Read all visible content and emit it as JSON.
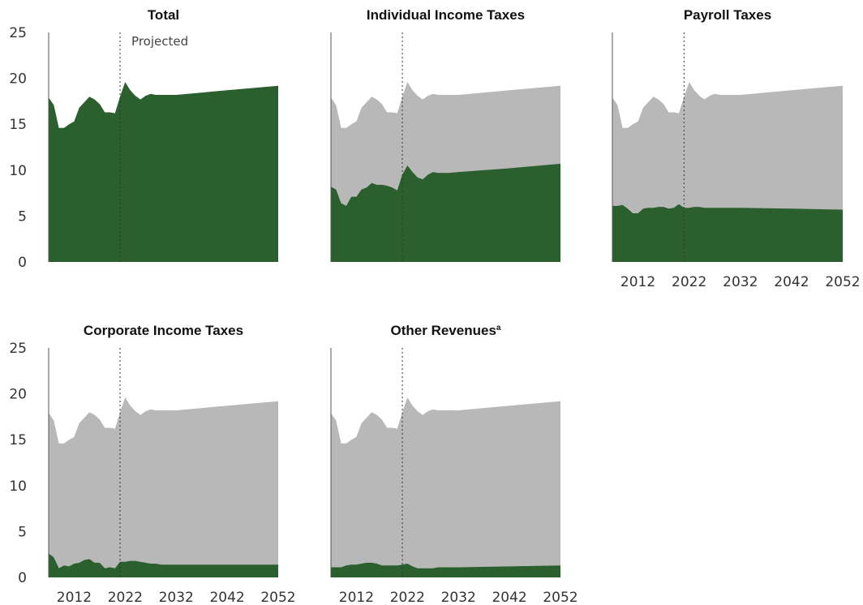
{
  "chart_data": {
    "type": "area",
    "colors": {
      "total": "#b8b8b8",
      "component": "#2b5f2e"
    },
    "x_ticks": [
      2012,
      2022,
      2032,
      2042,
      2052
    ],
    "y_ticks": [
      0,
      5,
      10,
      15,
      20,
      25
    ],
    "xlim": [
      2007,
      2052
    ],
    "ylim": [
      0,
      25
    ],
    "projection_start": 2021,
    "projected_label": "Projected",
    "total": {
      "x": [
        2007,
        2008,
        2009,
        2010,
        2011,
        2012,
        2013,
        2014,
        2015,
        2016,
        2017,
        2018,
        2019,
        2020,
        2021,
        2022,
        2023,
        2024,
        2025,
        2026,
        2027,
        2028,
        2029,
        2030,
        2032,
        2042,
        2052
      ],
      "y": [
        17.9,
        17.1,
        14.6,
        14.6,
        15.0,
        15.3,
        16.8,
        17.4,
        18.0,
        17.7,
        17.2,
        16.3,
        16.3,
        16.2,
        18.0,
        19.6,
        18.7,
        18.1,
        17.7,
        18.1,
        18.3,
        18.2,
        18.2,
        18.2,
        18.2,
        18.7,
        19.2
      ]
    },
    "panels": [
      {
        "title": "Total",
        "show_total": false,
        "x": [
          2007,
          2008,
          2009,
          2010,
          2011,
          2012,
          2013,
          2014,
          2015,
          2016,
          2017,
          2018,
          2019,
          2020,
          2021,
          2022,
          2023,
          2024,
          2025,
          2026,
          2027,
          2028,
          2029,
          2030,
          2032,
          2042,
          2052
        ],
        "values": [
          17.9,
          17.1,
          14.6,
          14.6,
          15.0,
          15.3,
          16.8,
          17.4,
          18.0,
          17.7,
          17.2,
          16.3,
          16.3,
          16.2,
          18.0,
          19.6,
          18.7,
          18.1,
          17.7,
          18.1,
          18.3,
          18.2,
          18.2,
          18.2,
          18.2,
          18.7,
          19.2
        ]
      },
      {
        "title": "Individual Income Taxes",
        "show_total": true,
        "x": [
          2007,
          2008,
          2009,
          2010,
          2011,
          2012,
          2013,
          2014,
          2015,
          2016,
          2017,
          2018,
          2019,
          2020,
          2021,
          2022,
          2023,
          2024,
          2025,
          2026,
          2027,
          2028,
          2029,
          2030,
          2032,
          2042,
          2052
        ],
        "values": [
          8.2,
          7.9,
          6.4,
          6.1,
          7.1,
          7.1,
          7.9,
          8.1,
          8.6,
          8.4,
          8.4,
          8.3,
          8.1,
          7.8,
          9.5,
          10.5,
          9.8,
          9.2,
          9.0,
          9.5,
          9.8,
          9.7,
          9.7,
          9.7,
          9.8,
          10.2,
          10.7
        ]
      },
      {
        "title": "Payroll Taxes",
        "show_total": true,
        "x": [
          2007,
          2008,
          2009,
          2010,
          2011,
          2012,
          2013,
          2014,
          2015,
          2016,
          2017,
          2018,
          2019,
          2020,
          2021,
          2022,
          2023,
          2024,
          2025,
          2026,
          2027,
          2028,
          2029,
          2030,
          2032,
          2042,
          2052
        ],
        "values": [
          6.1,
          6.1,
          6.2,
          5.8,
          5.3,
          5.3,
          5.8,
          5.9,
          5.9,
          6.0,
          6.0,
          5.8,
          5.9,
          6.3,
          5.9,
          5.9,
          6.0,
          6.0,
          5.9,
          5.9,
          5.9,
          5.9,
          5.9,
          5.9,
          5.9,
          5.8,
          5.7
        ]
      },
      {
        "title": "Corporate Income Taxes",
        "show_total": true,
        "x": [
          2007,
          2008,
          2009,
          2010,
          2011,
          2012,
          2013,
          2014,
          2015,
          2016,
          2017,
          2018,
          2019,
          2020,
          2021,
          2022,
          2023,
          2024,
          2025,
          2026,
          2027,
          2028,
          2029,
          2030,
          2032,
          2042,
          2052
        ],
        "values": [
          2.6,
          2.2,
          1.0,
          1.3,
          1.2,
          1.5,
          1.6,
          1.9,
          2.0,
          1.6,
          1.6,
          1.0,
          1.1,
          1.0,
          1.7,
          1.7,
          1.8,
          1.8,
          1.7,
          1.6,
          1.5,
          1.5,
          1.4,
          1.4,
          1.4,
          1.4,
          1.4
        ]
      },
      {
        "title": "Other Revenues",
        "title_sup": "a",
        "show_total": true,
        "x": [
          2007,
          2008,
          2009,
          2010,
          2011,
          2012,
          2013,
          2014,
          2015,
          2016,
          2017,
          2018,
          2019,
          2020,
          2021,
          2022,
          2023,
          2024,
          2025,
          2026,
          2027,
          2028,
          2029,
          2030,
          2032,
          2042,
          2052
        ],
        "values": [
          1.1,
          1.1,
          1.1,
          1.3,
          1.4,
          1.4,
          1.5,
          1.6,
          1.6,
          1.5,
          1.3,
          1.3,
          1.3,
          1.3,
          1.4,
          1.5,
          1.2,
          1.0,
          1.0,
          1.0,
          1.0,
          1.1,
          1.1,
          1.1,
          1.1,
          1.2,
          1.3
        ]
      }
    ]
  }
}
